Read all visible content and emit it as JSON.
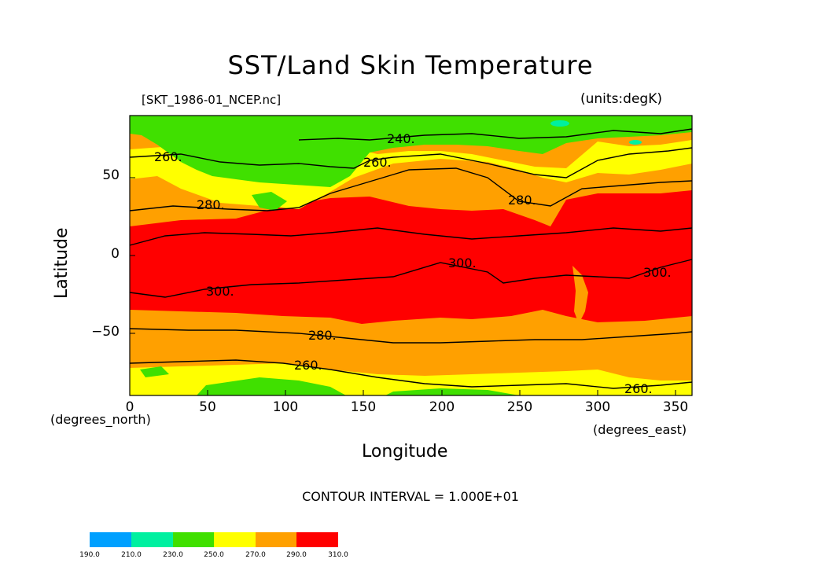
{
  "title": "SST/Land Skin Temperature",
  "file_label": "[SKT_1986-01_NCEP.nc]",
  "units_label": "(units:degK)",
  "x_axis": {
    "title": "Longitude",
    "units": "(degrees_east)",
    "ticks": [
      "0",
      "50",
      "100",
      "150",
      "200",
      "250",
      "300",
      "350"
    ],
    "range": [
      0,
      360
    ]
  },
  "y_axis": {
    "title": "Latitude",
    "units": "(degrees_north)",
    "ticks": [
      "50",
      "0",
      "−50"
    ],
    "range": [
      -90,
      90
    ]
  },
  "contour_interval": "CONTOUR INTERVAL = 1.000E+01",
  "contour_labels": [
    "240.",
    "260.",
    "260.",
    "280.",
    "280.",
    "300.",
    "300.",
    "300.",
    "280.",
    "260.",
    "260."
  ],
  "legend": {
    "levels": [
      "190.0",
      "210.0",
      "230.0",
      "250.0",
      "270.0",
      "290.0",
      "310.0"
    ],
    "colors": [
      "#00a0ff",
      "#00f0a0",
      "#40e000",
      "#ffff00",
      "#ffa000",
      "#ff0000"
    ]
  },
  "colors": {
    "band_190_210": "#00a0ff",
    "band_210_230": "#00f0a0",
    "band_230_250": "#40e000",
    "band_250_270": "#ffff00",
    "band_270_290": "#ffa000",
    "band_290_310": "#ff0000"
  }
}
